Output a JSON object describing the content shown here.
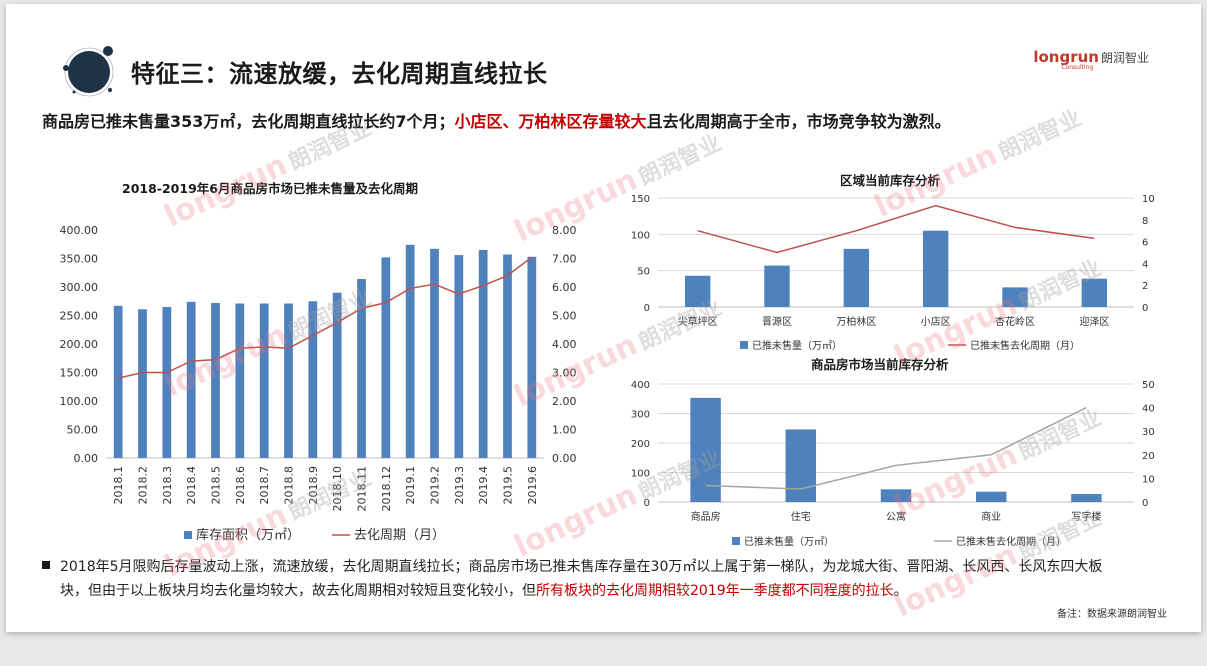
{
  "header": {
    "title": "特征三：流速放缓，去化周期直线拉长",
    "logo_en": "longrun",
    "logo_cn": "朗润智业",
    "logo_sub": "Consulting"
  },
  "subtitle": {
    "part1": "商品房已推未售量353万㎡，去化周期直线拉长约7个月；",
    "part2_red": "小店区、万柏林区存量较大",
    "part3": "且去化周期高于全市，市场竞争较为激烈。"
  },
  "watermark": {
    "en": "longrun",
    "cn": "朗润智业"
  },
  "chart_data": [
    {
      "type": "bar+line",
      "title": "2018-2019年6月商品房市场已推未售量及去化周期",
      "categories": [
        "2018.1",
        "2018.2",
        "2018.3",
        "2018.4",
        "2018.5",
        "2018.6",
        "2018.7",
        "2018.8",
        "2018.9",
        "2018.10",
        "2018.11",
        "2018.12",
        "2019.1",
        "2019.2",
        "2019.3",
        "2019.4",
        "2019.5",
        "2019.6"
      ],
      "series": [
        {
          "name": "库存面积（万㎡）",
          "kind": "bar",
          "axis": "left",
          "color": "#4f81bd",
          "values": [
            267,
            261,
            265,
            274,
            272,
            271,
            271,
            271,
            275,
            290,
            314,
            352,
            374,
            367,
            356,
            365,
            357,
            353
          ]
        },
        {
          "name": "去化周期（月）",
          "kind": "line",
          "axis": "right",
          "color": "#c0504d",
          "values": [
            2.8,
            3.0,
            3.0,
            3.4,
            3.45,
            3.85,
            3.9,
            3.85,
            4.3,
            4.75,
            5.25,
            5.45,
            5.95,
            6.1,
            5.75,
            6.05,
            6.4,
            7.05
          ]
        }
      ],
      "ylim_left": [
        0,
        400
      ],
      "yticks_left": [
        "0.00",
        "50.00",
        "100.00",
        "150.00",
        "200.00",
        "250.00",
        "300.00",
        "350.00",
        "400.00"
      ],
      "ylim_right": [
        0,
        8
      ],
      "yticks_right": [
        "0.00",
        "1.00",
        "2.00",
        "3.00",
        "4.00",
        "5.00",
        "6.00",
        "7.00",
        "8.00"
      ],
      "legend": "bottom",
      "grid": false
    },
    {
      "type": "bar+line",
      "title": "区域当前库存分析",
      "categories": [
        "尖草坪区",
        "晋源区",
        "万柏林区",
        "小店区",
        "杏花岭区",
        "迎泽区"
      ],
      "series": [
        {
          "name": "已推未售量（万㎡）",
          "kind": "bar",
          "axis": "left",
          "color": "#4f81bd",
          "values": [
            43,
            57,
            80,
            105,
            27,
            39
          ]
        },
        {
          "name": "已推未售去化周期（月）",
          "kind": "line",
          "axis": "right",
          "color": "#c0504d",
          "values": [
            7.0,
            5.0,
            7.0,
            9.3,
            7.3,
            6.3
          ]
        }
      ],
      "ylim_left": [
        0,
        150
      ],
      "yticks_left": [
        "0",
        "50",
        "100",
        "150"
      ],
      "ylim_right": [
        0,
        10
      ],
      "yticks_right": [
        "0",
        "2",
        "4",
        "6",
        "8",
        "10"
      ],
      "legend": "bottom",
      "grid": true
    },
    {
      "type": "bar+line",
      "title": "商品房市场当前库存分析",
      "categories": [
        "商品房",
        "住宅",
        "公寓",
        "商业",
        "写字楼"
      ],
      "series": [
        {
          "name": "已推未售量（万㎡）",
          "kind": "bar",
          "axis": "left",
          "color": "#4f81bd",
          "values": [
            353,
            246,
            43,
            35,
            27
          ]
        },
        {
          "name": "已推未售去化周期（月）",
          "kind": "line",
          "axis": "right",
          "color": "#a5a5a5",
          "values": [
            7,
            5.5,
            15.5,
            20,
            40
          ]
        }
      ],
      "ylim_left": [
        0,
        400
      ],
      "yticks_left": [
        "0",
        "100",
        "200",
        "300",
        "400"
      ],
      "ylim_right": [
        0,
        50
      ],
      "yticks_right": [
        "0",
        "10",
        "20",
        "30",
        "40",
        "50"
      ],
      "legend": "bottom",
      "grid": true
    }
  ],
  "bullet": {
    "line1": "2018年5月限购后存量波动上涨，流速放缓，去化周期直线拉长；商品房市场已推未售库存量在30万㎡以上属于第一梯队，为龙城大街、晋阳湖、长风西、长风东四大板",
    "line2_a": "块，但由于以上板块月均去化量均较大，故去化周期相对较短且变化较小，但",
    "line2_red": "所有板块的去化周期相较2019年一季度都不同程度的拉长",
    "line2_b": "。"
  },
  "note": "备注：数据来源朗润智业",
  "colors": {
    "bar": "#4f81bd",
    "line_red": "#c0504d",
    "line_gray": "#a5a5a5",
    "accent_red": "#c00000"
  }
}
